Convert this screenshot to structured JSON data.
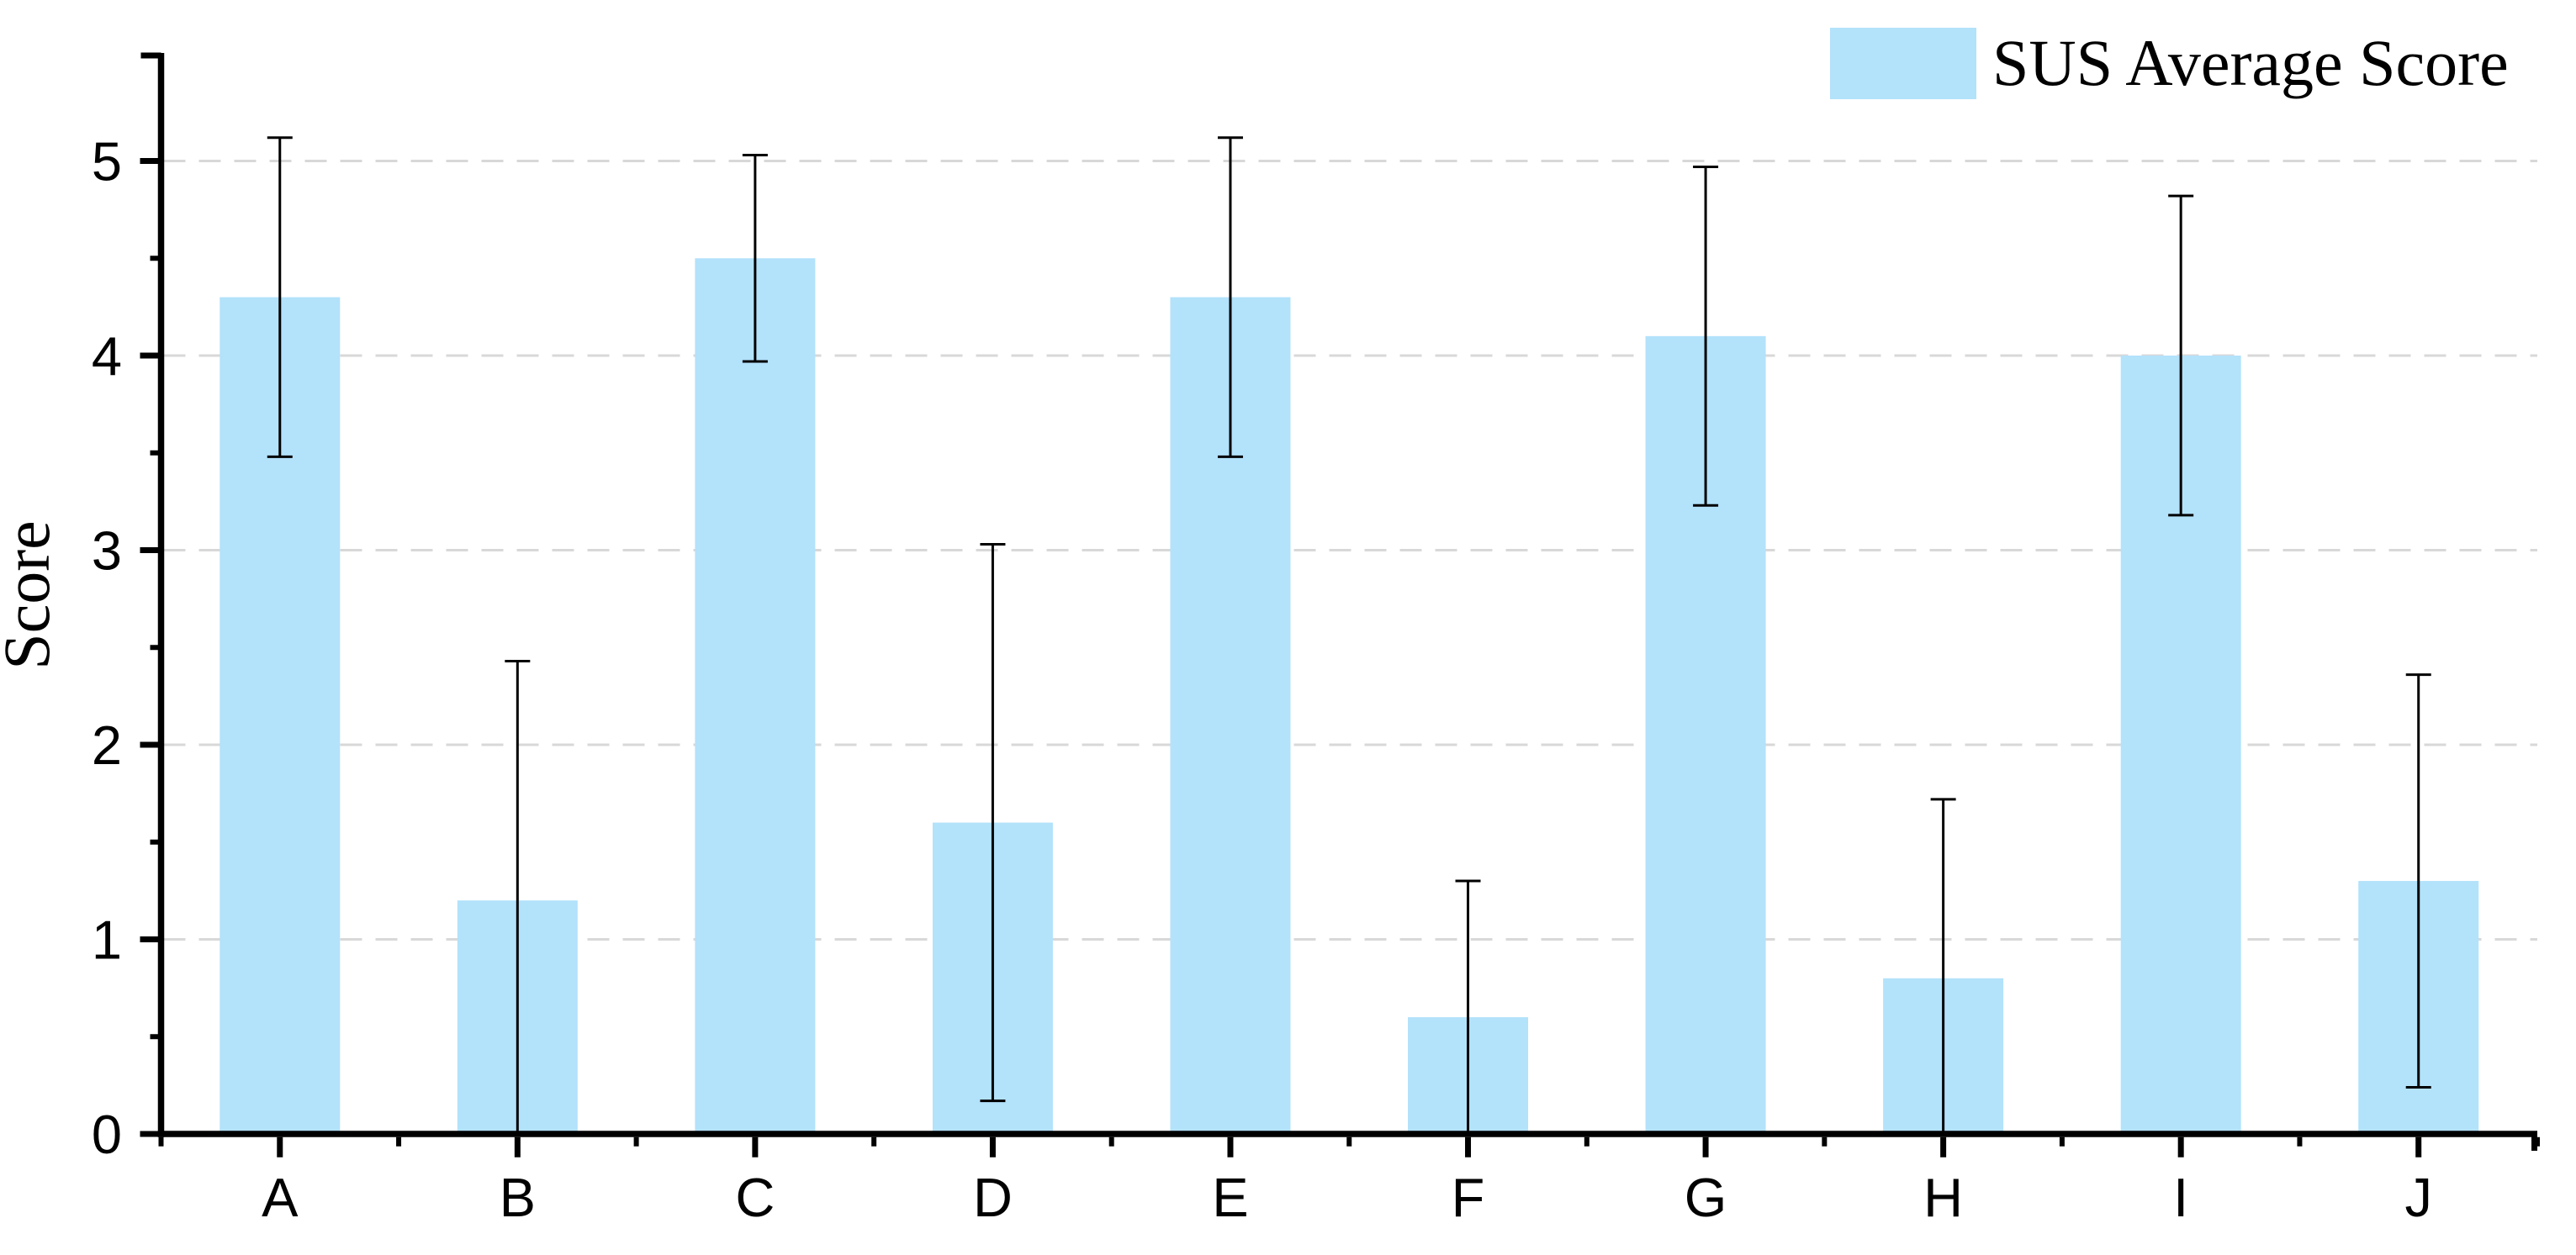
{
  "chart_data": {
    "type": "bar",
    "title": "",
    "ylabel": "Score",
    "xlabel": "",
    "legend": "SUS Average Score",
    "legend_position": "top-right",
    "categories": [
      "A",
      "B",
      "C",
      "D",
      "E",
      "F",
      "G",
      "H",
      "I",
      "J"
    ],
    "series": [
      {
        "name": "SUS Average Score",
        "values": [
          4.3,
          1.2,
          4.5,
          1.6,
          4.3,
          0.6,
          4.1,
          0.8,
          4.0,
          1.3
        ],
        "errors": [
          0.82,
          1.23,
          0.53,
          1.43,
          0.82,
          0.7,
          0.87,
          0.92,
          0.82,
          1.06
        ]
      }
    ],
    "error_caps_upper": [
      5.12,
      2.43,
      5.03,
      3.03,
      5.12,
      1.3,
      4.97,
      1.72,
      4.82,
      2.36
    ],
    "error_caps_lower": [
      3.48,
      0.0,
      3.97,
      0.17,
      3.48,
      0.0,
      3.22,
      0.0,
      3.18,
      0.24
    ],
    "error_lower_clipped": [
      false,
      true,
      false,
      true,
      false,
      true,
      false,
      true,
      false,
      true
    ],
    "ylim": [
      0,
      5.5
    ],
    "yticks": [
      "0",
      "1",
      "2",
      "3",
      "4",
      "5"
    ],
    "y_minor_interval": 0.5,
    "grid": "horizontal-dashed",
    "bar_color": "#B3E2FB",
    "gridline_color": "#D8D8D8",
    "axis_color": "#000000"
  }
}
